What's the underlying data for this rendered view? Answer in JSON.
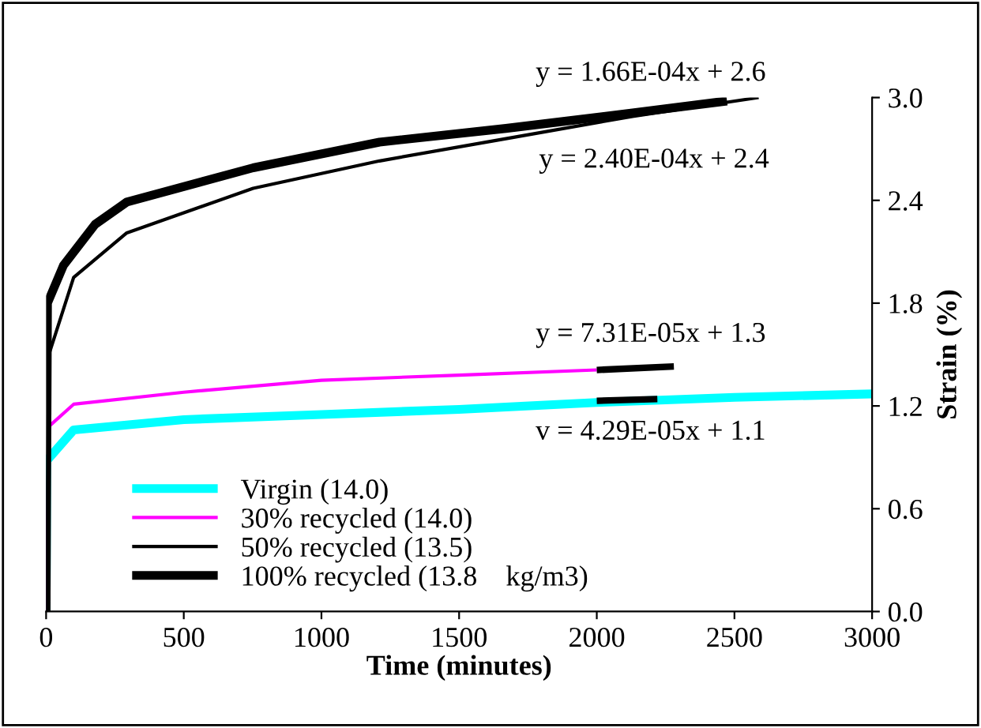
{
  "chart_data": {
    "type": "line",
    "xlabel": "Time (minutes)",
    "ylabel": "Strain (%)",
    "xlim": [
      0,
      3000
    ],
    "xticks": [
      0,
      500,
      1000,
      1500,
      2000,
      2500,
      3000
    ],
    "ylim": [
      0,
      3.0
    ],
    "yticks": [
      {
        "value": 0,
        "label": "0.0"
      },
      {
        "value": 0.6,
        "label": "0.6"
      },
      {
        "value": 1.2,
        "label": "1.2"
      },
      {
        "value": 1.8,
        "label": "1.8"
      },
      {
        "value": 2.4,
        "label": "2.4"
      },
      {
        "value": 3.0,
        "label": "3.0"
      }
    ],
    "grid": false,
    "legend": "bottom left",
    "marker": "none",
    "line_style": "solid",
    "series": [
      {
        "name": "Virgin (14.0)",
        "color": "#00ffff",
        "x": [
          0,
          2,
          100,
          500,
          1000,
          1500,
          2000,
          2500,
          3000
        ],
        "values": [
          0,
          0.88,
          1.06,
          1.12,
          1.15,
          1.18,
          1.22,
          1.25,
          1.27
        ]
      },
      {
        "name": "30% recycled (14.0)",
        "color": "#ff00ff",
        "x": [
          0,
          10,
          100,
          500,
          1000,
          1500,
          2000
        ],
        "values": [
          0,
          1.08,
          1.21,
          1.28,
          1.35,
          1.38,
          1.41
        ]
      },
      {
        "name": "50% recycled (13.5)",
        "color": "#000000",
        "x": [
          0,
          10,
          100,
          293,
          752,
          1211,
          1670,
          2130,
          2588
        ],
        "values": [
          0,
          1.5,
          1.95,
          2.21,
          2.47,
          2.63,
          2.76,
          2.89,
          3.0
        ]
      },
      {
        "name": "100% recycled (13.8    kg/m3)",
        "color": "#000000",
        "x": [
          0,
          5,
          63,
          178,
          293,
          752,
          1211,
          1670,
          2130,
          2473
        ],
        "values": [
          0,
          1.8,
          2.02,
          2.26,
          2.39,
          2.59,
          2.74,
          2.82,
          2.91,
          2.98
        ]
      },
      {
        "color": "#000000",
        "x": [
          2000,
          2280
        ],
        "values": [
          1.41,
          1.43
        ]
      },
      {
        "color": "#000000",
        "x": [
          2000,
          2220
        ],
        "values": [
          1.23,
          1.24
        ]
      }
    ],
    "annotations": [
      "y = 1.66E-04x + 2.6",
      "y = 2.40E-04x + 2.4",
      "y = 7.31E-05x + 1.3",
      "v = 4.29E-05x + 1.1"
    ]
  }
}
